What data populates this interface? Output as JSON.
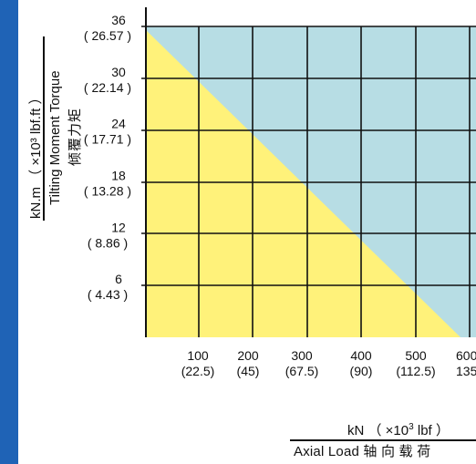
{
  "chart_data": {
    "type": "area",
    "series": [
      {
        "x": [
          0,
          600
        ],
        "y": [
          36,
          0
        ]
      }
    ],
    "x_ticks": [
      {
        "value": 100,
        "label": "100",
        "alt": "(22.5)"
      },
      {
        "value": 200,
        "label": "200",
        "alt": "(45)"
      },
      {
        "value": 300,
        "label": "300",
        "alt": "(67.5)"
      },
      {
        "value": 400,
        "label": "400",
        "alt": "(90)"
      },
      {
        "value": 500,
        "label": "500",
        "alt": "(112.5)"
      },
      {
        "value": 600,
        "label": "600",
        "alt": "135"
      }
    ],
    "y_ticks": [
      {
        "value": 6,
        "label": "6",
        "alt": "( 4.43 )"
      },
      {
        "value": 12,
        "label": "12",
        "alt": "( 8.86 )"
      },
      {
        "value": 18,
        "label": "18",
        "alt": "( 13.28 )"
      },
      {
        "value": 24,
        "label": "24",
        "alt": "( 17.71 )"
      },
      {
        "value": 30,
        "label": "30",
        "alt": "( 22.14 )"
      },
      {
        "value": 36,
        "label": "36",
        "alt": "( 26.57 )"
      }
    ],
    "xlim": [
      0,
      600
    ],
    "ylim": [
      0,
      36
    ],
    "grid": true,
    "colors": {
      "safe_area": "#fff27a",
      "background": "#b7dde4",
      "sidebar": "#1f63b6",
      "grid": "#111111"
    }
  },
  "labels": {
    "y_units": "kN.m （ ×10³ lbf.ft ）",
    "y_title": "Tilting Moment Torque",
    "y_title_cn": "倾覆力矩",
    "x_units_prefix": "kN （ ×10",
    "x_units_exp": "3",
    "x_units_suffix": " lbf ）",
    "x_title": "Axial Load  轴 向 载 荷"
  }
}
